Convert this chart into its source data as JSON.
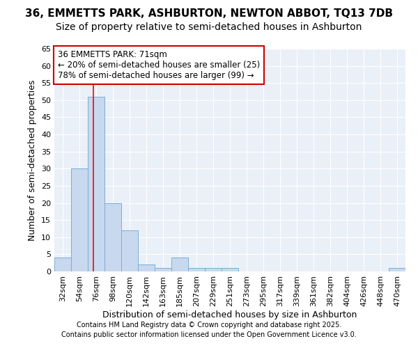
{
  "title1": "36, EMMETTS PARK, ASHBURTON, NEWTON ABBOT, TQ13 7DB",
  "title2": "Size of property relative to semi-detached houses in Ashburton",
  "xlabel": "Distribution of semi-detached houses by size in Ashburton",
  "ylabel": "Number of semi-detached properties",
  "bar_values": [
    4,
    30,
    51,
    20,
    12,
    2,
    1,
    4,
    1,
    1,
    1,
    0,
    0,
    0,
    0,
    0,
    0,
    0,
    0,
    0,
    1
  ],
  "x_labels": [
    "32sqm",
    "54sqm",
    "76sqm",
    "98sqm",
    "120sqm",
    "142sqm",
    "163sqm",
    "185sqm",
    "207sqm",
    "229sqm",
    "251sqm",
    "273sqm",
    "295sqm",
    "317sqm",
    "339sqm",
    "361sqm",
    "382sqm",
    "404sqm",
    "426sqm",
    "448sqm",
    "470sqm"
  ],
  "bar_color": "#c8d8ee",
  "bar_edge_color": "#7aaed6",
  "ylim": [
    0,
    65
  ],
  "yticks": [
    0,
    5,
    10,
    15,
    20,
    25,
    30,
    35,
    40,
    45,
    50,
    55,
    60,
    65
  ],
  "red_line_x": 2.0,
  "annotation_text": "36 EMMETTS PARK: 71sqm\n← 20% of semi-detached houses are smaller (25)\n78% of semi-detached houses are larger (99) →",
  "annotation_box_color": "#ffffff",
  "annotation_box_edge": "#cc0000",
  "footer_text1": "Contains HM Land Registry data © Crown copyright and database right 2025.",
  "footer_text2": "Contains public sector information licensed under the Open Government Licence v3.0.",
  "plot_bg_color": "#eaf0f8",
  "fig_background": "#ffffff",
  "grid_color": "#ffffff",
  "title_fontsize": 11,
  "subtitle_fontsize": 10,
  "axis_label_fontsize": 9,
  "tick_fontsize": 8,
  "annotation_fontsize": 8.5,
  "footer_fontsize": 7
}
